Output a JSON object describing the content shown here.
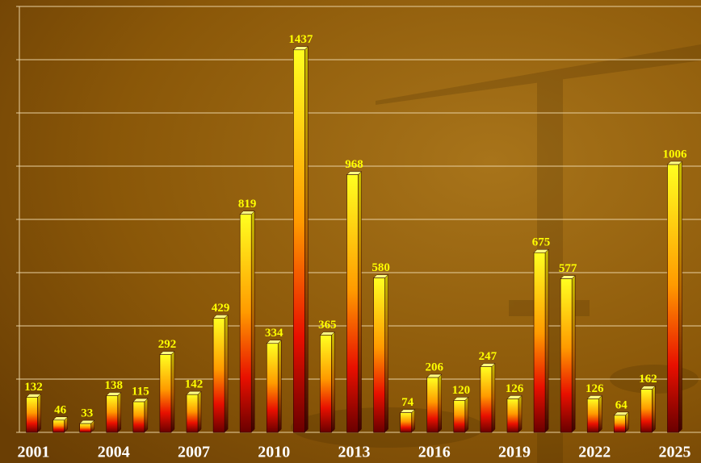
{
  "chart_data": {
    "type": "bar",
    "categories": [
      "2001",
      null,
      null,
      "2004",
      null,
      null,
      "2007",
      null,
      null,
      "2010",
      null,
      null,
      "2013",
      null,
      null,
      "2016",
      null,
      null,
      "2019",
      null,
      null,
      "2022",
      null,
      null,
      "2025"
    ],
    "values": [
      132,
      46,
      33,
      138,
      115,
      292,
      142,
      429,
      819,
      334,
      1437,
      365,
      968,
      580,
      74,
      206,
      120,
      247,
      126,
      675,
      577,
      126,
      64,
      162,
      1006
    ],
    "ylim": [
      0,
      1600
    ],
    "yticks": [
      0,
      200,
      400,
      600,
      800,
      1000,
      1200,
      1400,
      1600
    ],
    "grid": true
  }
}
